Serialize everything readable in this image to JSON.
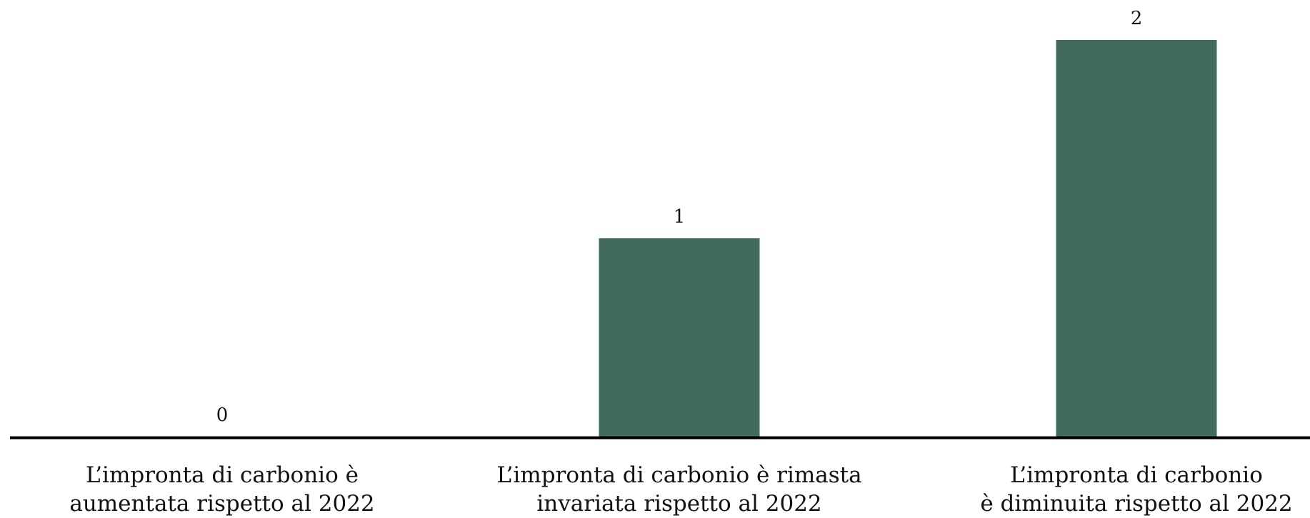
{
  "chart_data": {
    "type": "bar",
    "categories": [
      "L’impronta di carbonio è\naumentata rispetto al 2022",
      "L’impronta di carbonio è rimasta\ninvariata rispetto al 2022",
      "L’impronta di carbonio\nè diminuita rispetto al 2022"
    ],
    "values": [
      0,
      1,
      2
    ],
    "color": "#426b60",
    "ylim": [
      0,
      2
    ]
  }
}
